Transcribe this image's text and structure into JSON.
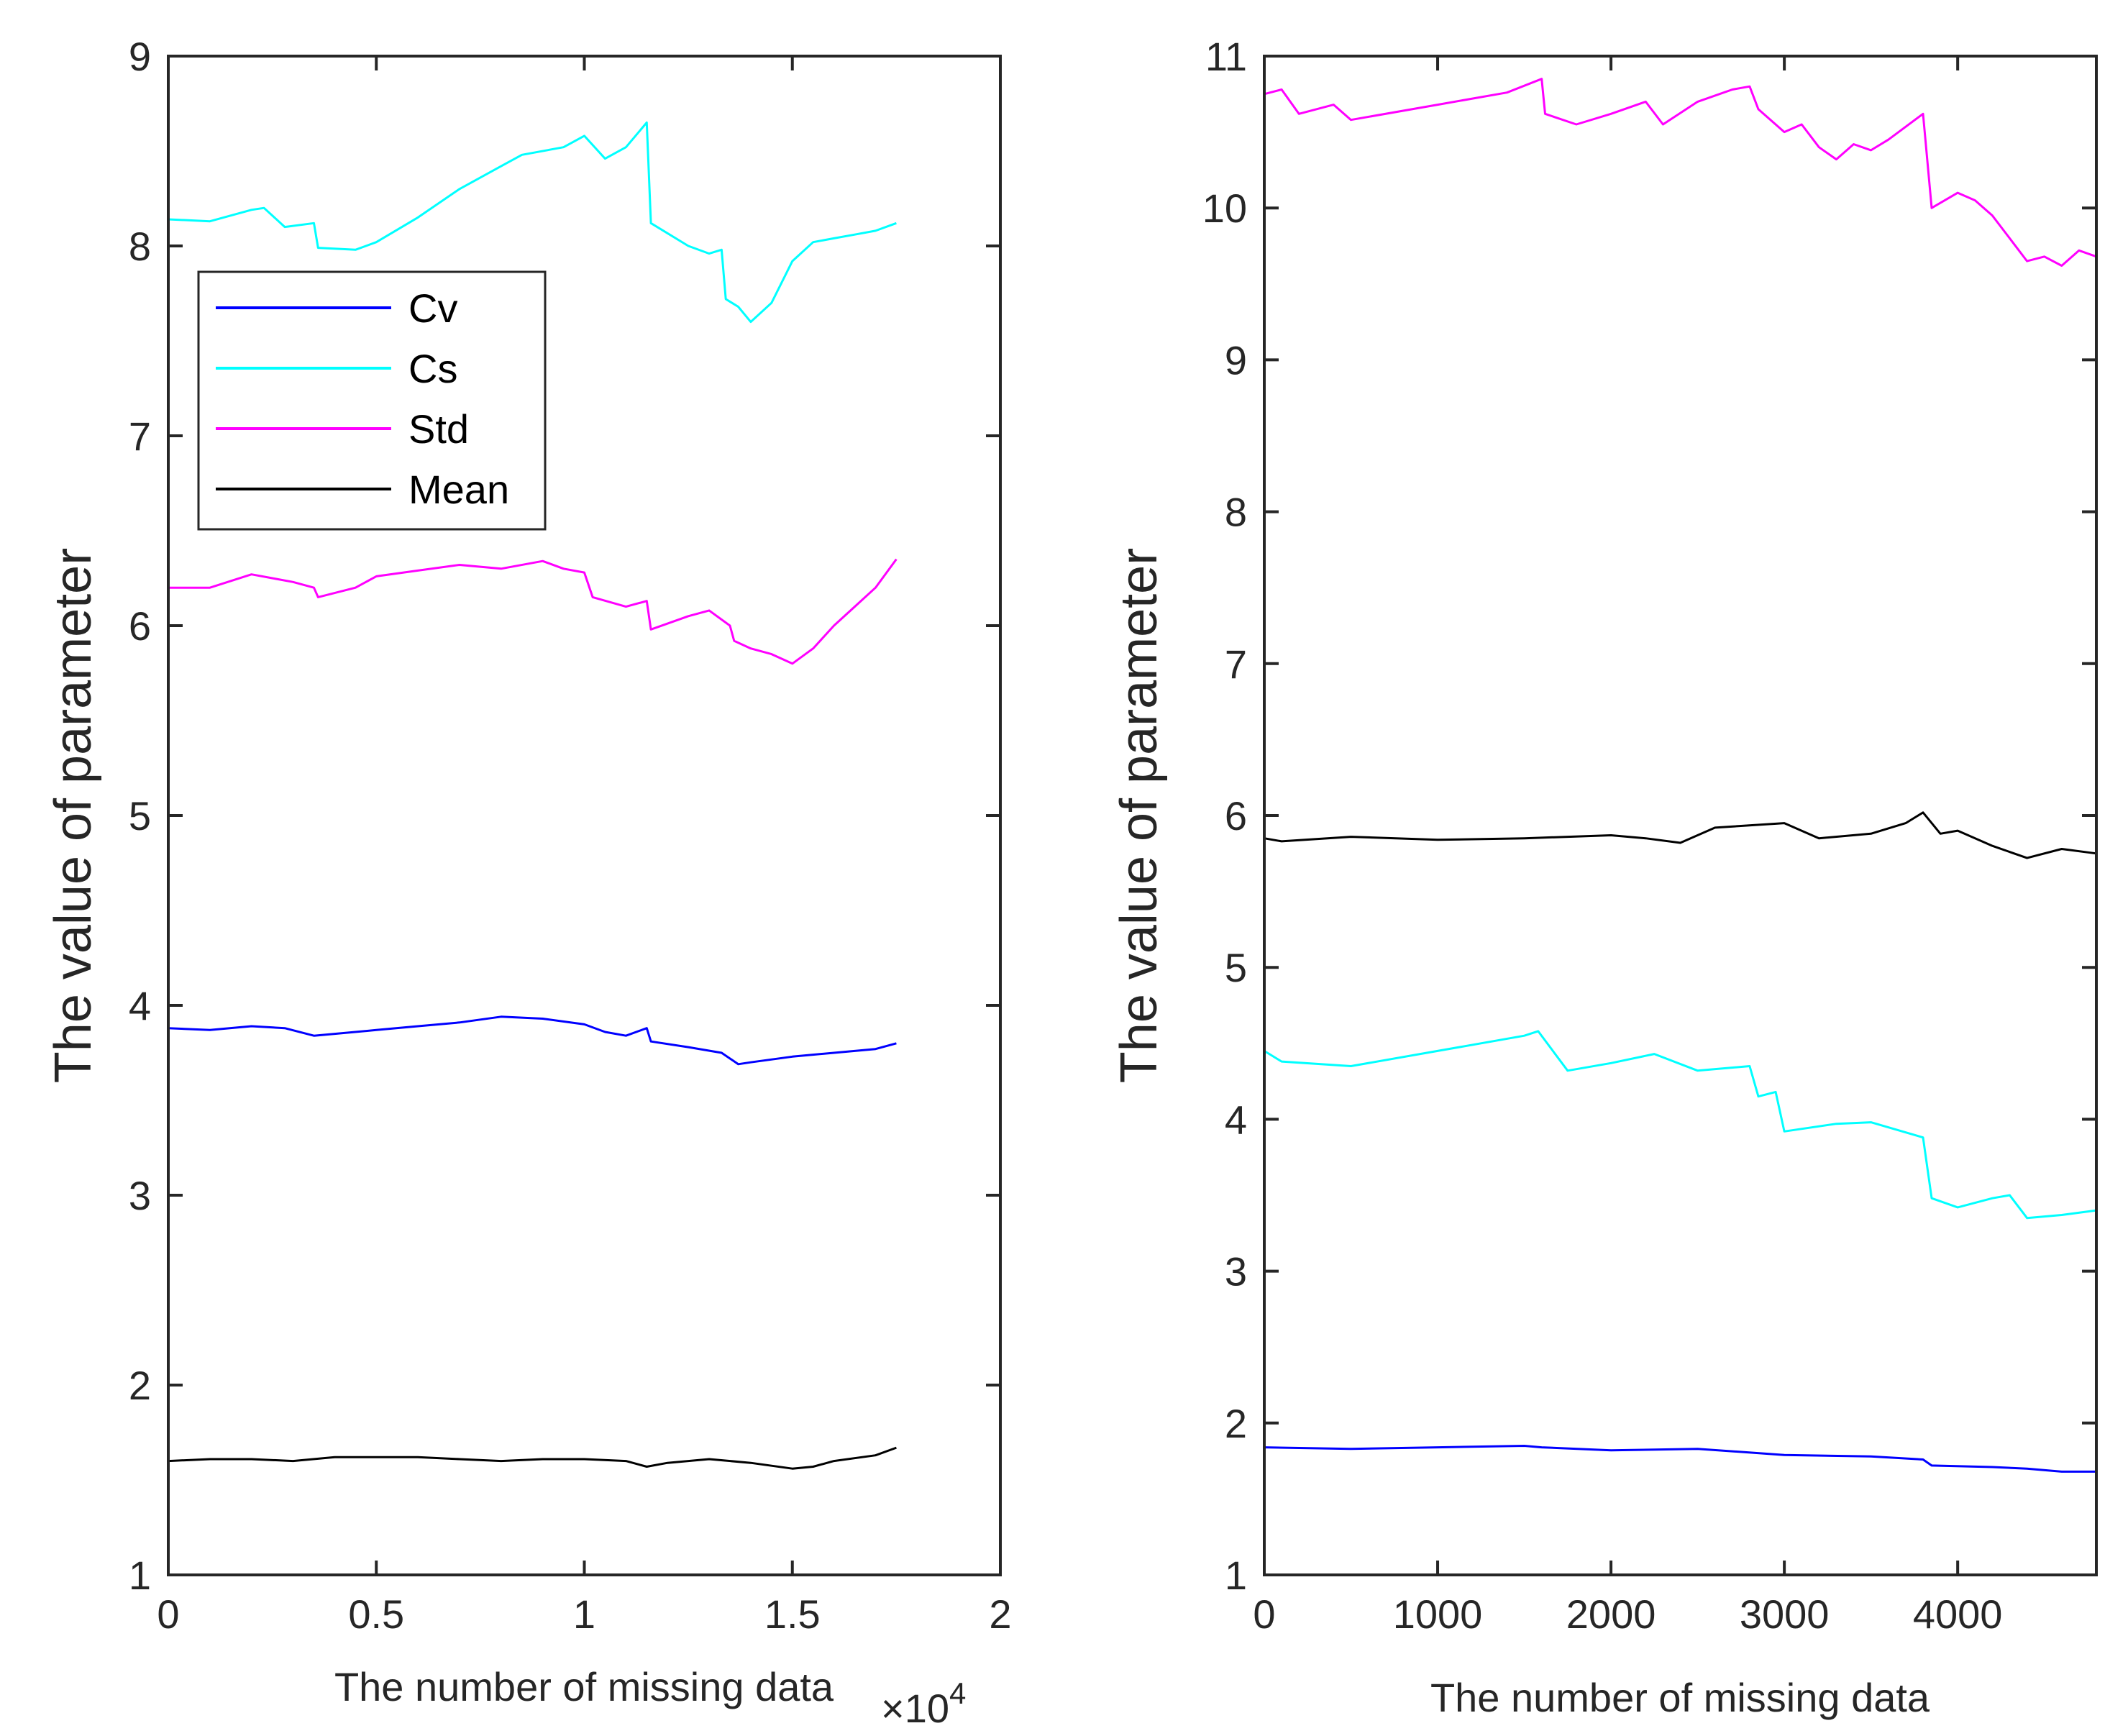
{
  "chart_data": [
    {
      "type": "line",
      "panel": "left",
      "xlabel": "The number of missing data",
      "ylabel": "The value of parameter",
      "x_exponent_label": "×10",
      "x_exponent_power": "4",
      "xlim": [
        0,
        20000
      ],
      "ylim": [
        1,
        9
      ],
      "xticks": [
        0,
        5000,
        10000,
        15000,
        20000
      ],
      "xtick_labels": [
        "0",
        "0.5",
        "1",
        "1.5",
        "2"
      ],
      "yticks": [
        1,
        2,
        3,
        4,
        5,
        6,
        7,
        8,
        9
      ],
      "ytick_labels": [
        "1",
        "2",
        "3",
        "4",
        "5",
        "6",
        "7",
        "8",
        "9"
      ],
      "legend": {
        "placement": "upper-left",
        "entries": [
          {
            "label": "Cv",
            "color": "#0000ff"
          },
          {
            "label": "Cs",
            "color": "#00ffff"
          },
          {
            "label": "Std",
            "color": "#ff00ff"
          },
          {
            "label": "Mean",
            "color": "#000000"
          }
        ]
      },
      "series": [
        {
          "name": "Cv",
          "color": "#0000ff",
          "x": [
            0,
            1000,
            2000,
            2800,
            3500,
            4000,
            5000,
            6000,
            7000,
            8000,
            9000,
            10000,
            10500,
            11000,
            11500,
            11600,
            12500,
            13300,
            13700,
            14000,
            15000,
            16000,
            17000,
            17500
          ],
          "y": [
            3.88,
            3.87,
            3.89,
            3.88,
            3.84,
            3.85,
            3.87,
            3.89,
            3.91,
            3.94,
            3.93,
            3.9,
            3.86,
            3.84,
            3.88,
            3.81,
            3.78,
            3.75,
            3.69,
            3.7,
            3.73,
            3.75,
            3.77,
            3.8
          ]
        },
        {
          "name": "Cs",
          "color": "#00ffff",
          "x": [
            0,
            1000,
            2000,
            2300,
            2800,
            3500,
            3600,
            4500,
            5000,
            6000,
            7000,
            8000,
            8500,
            9500,
            10000,
            10500,
            11000,
            11500,
            11600,
            12500,
            13000,
            13300,
            13400,
            13700,
            14000,
            14500,
            15000,
            15500,
            16000,
            16500,
            17000,
            17500
          ],
          "y": [
            8.14,
            8.13,
            8.19,
            8.2,
            8.1,
            8.12,
            7.99,
            7.98,
            8.02,
            8.15,
            8.3,
            8.42,
            8.48,
            8.52,
            8.58,
            8.46,
            8.52,
            8.65,
            8.12,
            8.0,
            7.96,
            7.98,
            7.72,
            7.68,
            7.6,
            7.7,
            7.92,
            8.02,
            8.04,
            8.06,
            8.08,
            8.12
          ]
        },
        {
          "name": "Std",
          "color": "#ff00ff",
          "x": [
            0,
            1000,
            2000,
            2500,
            3000,
            3500,
            3600,
            4500,
            5000,
            6000,
            7000,
            8000,
            9000,
            9500,
            10000,
            10200,
            11000,
            11500,
            11600,
            12500,
            13000,
            13500,
            13600,
            14000,
            14500,
            15000,
            15500,
            16000,
            16500,
            17000,
            17500
          ],
          "y": [
            6.2,
            6.2,
            6.27,
            6.25,
            6.23,
            6.2,
            6.15,
            6.2,
            6.26,
            6.29,
            6.32,
            6.3,
            6.34,
            6.3,
            6.28,
            6.15,
            6.1,
            6.13,
            5.98,
            6.05,
            6.08,
            6.0,
            5.92,
            5.88,
            5.85,
            5.8,
            5.88,
            6.0,
            6.1,
            6.2,
            6.35
          ]
        },
        {
          "name": "Mean",
          "color": "#000000",
          "x": [
            0,
            1000,
            2000,
            3000,
            4000,
            5000,
            6000,
            7000,
            8000,
            9000,
            10000,
            11000,
            11500,
            12000,
            13000,
            14000,
            15000,
            15500,
            16000,
            17000,
            17500
          ],
          "y": [
            1.6,
            1.61,
            1.61,
            1.6,
            1.62,
            1.62,
            1.62,
            1.61,
            1.6,
            1.61,
            1.61,
            1.6,
            1.57,
            1.59,
            1.61,
            1.59,
            1.56,
            1.57,
            1.6,
            1.63,
            1.67
          ]
        }
      ]
    },
    {
      "type": "line",
      "panel": "right",
      "xlabel": "The number of missing data",
      "ylabel": "The value of parameter",
      "xlim": [
        0,
        4800
      ],
      "ylim": [
        1,
        11
      ],
      "xticks": [
        0,
        1000,
        2000,
        3000,
        4000
      ],
      "xtick_labels": [
        "0",
        "1000",
        "2000",
        "3000",
        "4000"
      ],
      "yticks": [
        1,
        2,
        3,
        4,
        5,
        6,
        7,
        8,
        9,
        10,
        11
      ],
      "ytick_labels": [
        "1",
        "2",
        "3",
        "4",
        "5",
        "6",
        "7",
        "8",
        "9",
        "10",
        "11"
      ],
      "series": [
        {
          "name": "Cv",
          "color": "#0000ff",
          "x": [
            0,
            500,
            1000,
            1500,
            1600,
            2000,
            2500,
            3000,
            3500,
            3800,
            3850,
            4200,
            4400,
            4600,
            4800
          ],
          "y": [
            1.84,
            1.83,
            1.84,
            1.85,
            1.84,
            1.82,
            1.83,
            1.79,
            1.78,
            1.76,
            1.72,
            1.71,
            1.7,
            1.68,
            1.68
          ]
        },
        {
          "name": "Cs",
          "color": "#00ffff",
          "x": [
            0,
            100,
            500,
            1000,
            1500,
            1580,
            1750,
            2000,
            2250,
            2500,
            2800,
            2850,
            2950,
            3000,
            3300,
            3500,
            3800,
            3850,
            4000,
            4200,
            4300,
            4400,
            4600,
            4800
          ],
          "y": [
            4.45,
            4.38,
            4.35,
            4.45,
            4.55,
            4.58,
            4.32,
            4.37,
            4.43,
            4.32,
            4.35,
            4.15,
            4.18,
            3.92,
            3.97,
            3.98,
            3.88,
            3.48,
            3.42,
            3.48,
            3.5,
            3.35,
            3.37,
            3.4
          ]
        },
        {
          "name": "Std",
          "color": "#ff00ff",
          "x": [
            0,
            100,
            200,
            400,
            500,
            1000,
            1400,
            1600,
            1620,
            1800,
            2000,
            2200,
            2300,
            2500,
            2700,
            2800,
            2850,
            3000,
            3100,
            3200,
            3300,
            3400,
            3500,
            3600,
            3800,
            3850,
            4000,
            4100,
            4200,
            4300,
            4400,
            4500,
            4600,
            4700,
            4800
          ],
          "y": [
            10.75,
            10.78,
            10.62,
            10.68,
            10.58,
            10.68,
            10.76,
            10.85,
            10.62,
            10.55,
            10.62,
            10.7,
            10.55,
            10.7,
            10.78,
            10.8,
            10.65,
            10.5,
            10.55,
            10.4,
            10.32,
            10.42,
            10.38,
            10.45,
            10.62,
            10.0,
            10.1,
            10.05,
            9.95,
            9.8,
            9.65,
            9.68,
            9.62,
            9.72,
            9.68
          ]
        },
        {
          "name": "Mean",
          "color": "#000000",
          "x": [
            0,
            100,
            500,
            1000,
            1500,
            2000,
            2200,
            2400,
            2600,
            3000,
            3200,
            3500,
            3700,
            3800,
            3900,
            4000,
            4200,
            4400,
            4600,
            4800
          ],
          "y": [
            5.85,
            5.83,
            5.86,
            5.84,
            5.85,
            5.87,
            5.85,
            5.82,
            5.92,
            5.95,
            5.85,
            5.88,
            5.95,
            6.02,
            5.88,
            5.9,
            5.8,
            5.72,
            5.78,
            5.75
          ]
        }
      ]
    }
  ]
}
